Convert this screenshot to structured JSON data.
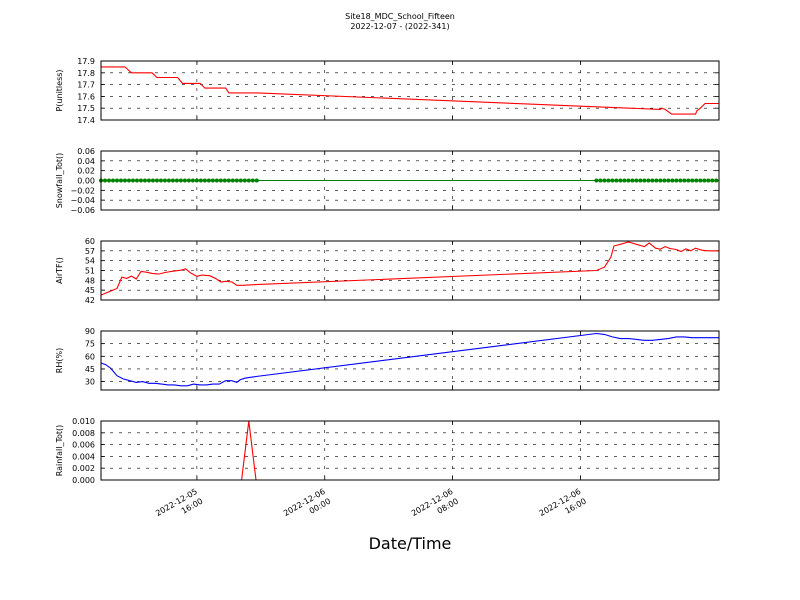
{
  "title": {
    "line1": "Site18_MDC_School_Fifteen",
    "line2": "2022-12-07 - (2022-341)"
  },
  "xlabel": "Date/Time",
  "chart_data": [
    {
      "type": "line",
      "ylabel": "P(unitless)",
      "ylim": [
        17.4,
        17.9
      ],
      "yticks": [
        "17.9",
        "17.8",
        "17.7",
        "17.6",
        "17.5",
        "17.4"
      ],
      "ytick_values": [
        17.9,
        17.8,
        17.7,
        17.6,
        17.5,
        17.4
      ],
      "xlim": [
        10,
        48.67
      ],
      "grid": true,
      "series": [
        {
          "color": "#ff0000",
          "x": [
            10,
            11.5,
            11.9,
            13.2,
            13.5,
            14.8,
            15.1,
            16.2,
            16.5,
            17.8,
            18.0,
            19.6,
            19.8,
            45.0,
            45.1,
            45.3,
            45.7,
            47.2,
            47.3,
            47.5,
            47.8,
            48.67
          ],
          "y": [
            17.85,
            17.85,
            17.8,
            17.8,
            17.76,
            17.76,
            17.71,
            17.71,
            17.67,
            17.67,
            17.63,
            17.63,
            17.63,
            17.49,
            17.5,
            17.49,
            17.45,
            17.45,
            17.48,
            17.5,
            17.54,
            17.54
          ]
        }
      ]
    },
    {
      "type": "line",
      "ylabel": "Snowfall_Tot()",
      "ylim": [
        -0.06,
        0.06
      ],
      "yticks": [
        "0.06",
        "0.04",
        "0.02",
        "0.00",
        "−0.02",
        "−0.04",
        "−0.06"
      ],
      "ytick_values": [
        0.06,
        0.04,
        0.02,
        0.0,
        -0.02,
        -0.04,
        -0.06
      ],
      "xlim": [
        10,
        48.67
      ],
      "grid": true,
      "series": [
        {
          "color": "#008000",
          "x": [
            10,
            48.67
          ],
          "y": [
            0,
            0
          ]
        }
      ],
      "markers": {
        "color": "#008000",
        "y": 0,
        "ranges": [
          [
            10,
            19.8,
            0.25
          ],
          [
            41.0,
            48.67,
            0.25
          ]
        ]
      }
    },
    {
      "type": "line",
      "ylabel": "AirTF()",
      "ylim": [
        42,
        60
      ],
      "yticks": [
        "60",
        "57",
        "54",
        "51",
        "48",
        "45",
        "42"
      ],
      "ytick_values": [
        60,
        57,
        54,
        51,
        48,
        45,
        42
      ],
      "xlim": [
        10,
        48.67
      ],
      "grid": true,
      "series": [
        {
          "color": "#ff0000",
          "x": [
            10,
            10.5,
            11.0,
            11.3,
            11.6,
            11.9,
            12.2,
            12.5,
            12.8,
            13.2,
            13.6,
            14.0,
            14.5,
            15.0,
            15.3,
            15.6,
            16.0,
            16.3,
            16.8,
            17.2,
            17.5,
            17.8,
            18.2,
            18.5,
            18.9,
            19.3,
            19.7,
            41.0,
            41.5,
            41.9,
            42.1,
            42.5,
            43.0,
            43.5,
            44.0,
            44.3,
            44.7,
            45.0,
            45.3,
            45.6,
            46.0,
            46.3,
            46.6,
            46.9,
            47.2,
            47.6,
            48.0,
            48.3,
            48.67
          ],
          "y": [
            43.5,
            44.5,
            45.5,
            49.0,
            48.6,
            49.3,
            48.4,
            50.7,
            50.5,
            50.1,
            49.9,
            50.4,
            50.8,
            51.1,
            51.5,
            50.3,
            49.2,
            49.6,
            49.4,
            48.5,
            47.5,
            47.7,
            47.5,
            46.5,
            46.5,
            46.6,
            46.7,
            51.0,
            52.0,
            55.0,
            58.5,
            59.0,
            59.7,
            59.0,
            58.3,
            59.4,
            57.8,
            57.5,
            58.3,
            57.7,
            57.4,
            56.8,
            57.6,
            57.0,
            57.8,
            57.2,
            57.0,
            57.0,
            57.0
          ]
        }
      ]
    },
    {
      "type": "line",
      "ylabel": "RH(%)",
      "ylim": [
        20,
        90
      ],
      "yticks": [
        "90",
        "75",
        "60",
        "45",
        "30"
      ],
      "ytick_values": [
        90,
        75,
        60,
        45,
        30
      ],
      "xlim": [
        10,
        48.67
      ],
      "grid": true,
      "series": [
        {
          "color": "#0000ff",
          "x": [
            10,
            10.3,
            10.6,
            11.0,
            11.4,
            11.8,
            12.2,
            12.6,
            13.0,
            13.4,
            13.8,
            14.2,
            14.6,
            15.0,
            15.4,
            15.8,
            16.2,
            16.6,
            17.0,
            17.4,
            17.8,
            18.2,
            18.5,
            18.7,
            19.0,
            19.3,
            19.7,
            41.0,
            41.5,
            42.0,
            42.5,
            43.0,
            43.5,
            44.0,
            44.5,
            45.0,
            45.5,
            46.0,
            46.5,
            47.0,
            47.5,
            48.0,
            48.67
          ],
          "y": [
            52,
            50,
            46,
            37,
            33,
            31,
            29,
            30,
            28,
            28,
            27,
            26,
            26,
            25,
            25,
            27,
            26,
            26,
            27,
            27,
            31,
            31,
            29,
            32,
            34,
            35,
            36,
            87,
            86,
            83,
            81,
            81,
            80,
            79,
            79,
            80,
            81,
            83,
            83,
            82,
            82,
            82,
            82
          ]
        }
      ]
    },
    {
      "type": "line",
      "ylabel": "Rainfall_Tot()",
      "ylim": [
        0,
        0.01
      ],
      "yticks": [
        "0.010",
        "0.008",
        "0.006",
        "0.004",
        "0.002",
        "0.000"
      ],
      "ytick_values": [
        0.01,
        0.008,
        0.006,
        0.004,
        0.002,
        0.0
      ],
      "xlim": [
        10,
        48.67
      ],
      "grid": true,
      "series": [
        {
          "color": "#ff0000",
          "x": [
            10,
            18.8,
            19.25,
            19.7,
            48.67
          ],
          "y": [
            0,
            0,
            0.01,
            0,
            0
          ]
        }
      ]
    }
  ],
  "xticks": [
    {
      "value": 16,
      "line1": "2022-12-05",
      "line2": "16:00"
    },
    {
      "value": 24,
      "line1": "2022-12-06",
      "line2": "00:00"
    },
    {
      "value": 32,
      "line1": "2022-12-06",
      "line2": "08:00"
    },
    {
      "value": 40,
      "line1": "2022-12-06",
      "line2": "16:00"
    }
  ]
}
